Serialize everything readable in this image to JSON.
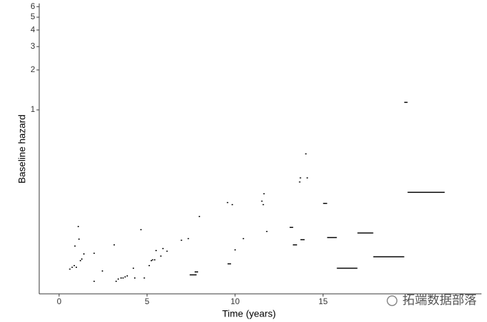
{
  "chart_data": {
    "type": "step-segments",
    "x_label": "Time (years)",
    "y_label": "Baseline hazard",
    "yscale": "log",
    "xlim": [
      -1.13,
      24
    ],
    "xticks": [
      0,
      5,
      10,
      15
    ],
    "ylim": [
      0.041,
      6.35
    ],
    "yticks": [
      1,
      2,
      3,
      4,
      5,
      6
    ],
    "grid": false,
    "color": "#000000",
    "x": [
      0.57,
      0.7,
      0.82,
      0.86,
      0.94,
      1.05,
      1.09,
      1.17,
      1.25,
      1.37,
      1.95,
      1.95,
      2.42,
      3.09,
      3.2,
      3.32,
      3.48,
      3.59,
      3.71,
      3.83,
      4.18,
      4.26,
      4.61,
      4.8,
      5.08,
      5.2,
      5.27,
      5.39,
      5.47,
      5.74,
      5.86,
      6.09,
      6.91,
      7.3,
      7.42,
      7.7,
      7.93,
      9.53,
      9.8,
      9.57,
      9.96,
      10.43,
      11.48,
      11.56,
      11.6,
      11.76,
      13.1,
      13.28,
      13.63,
      13.67,
      13.71,
      13.98,
      14.06,
      15.0,
      15.23,
      15.78,
      16.95,
      17.85,
      19.61,
      19.8
    ],
    "x_end": [
      0.65,
      0.78,
      0.9,
      0.94,
      1.02,
      1.13,
      1.17,
      1.25,
      1.33,
      1.45,
      2.03,
      2.03,
      2.5,
      3.17,
      3.28,
      3.4,
      3.56,
      3.67,
      3.79,
      3.91,
      4.26,
      4.34,
      4.69,
      4.88,
      5.16,
      5.28,
      5.35,
      5.47,
      5.55,
      5.82,
      5.94,
      6.17,
      6.99,
      7.38,
      7.81,
      7.9,
      8.01,
      9.61,
      9.88,
      9.77,
      10.04,
      10.51,
      11.56,
      11.64,
      11.68,
      11.84,
      13.3,
      13.52,
      13.71,
      13.75,
      13.95,
      14.06,
      14.14,
      15.23,
      15.78,
      16.95,
      17.85,
      19.61,
      19.8,
      21.91
    ],
    "values": [
      0.063,
      0.065,
      0.067,
      0.094,
      0.065,
      0.132,
      0.106,
      0.073,
      0.075,
      0.082,
      0.051,
      0.083,
      0.061,
      0.096,
      0.051,
      0.053,
      0.054,
      0.054,
      0.055,
      0.056,
      0.064,
      0.054,
      0.125,
      0.054,
      0.067,
      0.073,
      0.074,
      0.074,
      0.087,
      0.079,
      0.09,
      0.086,
      0.104,
      0.107,
      0.057,
      0.06,
      0.157,
      0.2,
      0.193,
      0.069,
      0.088,
      0.107,
      0.205,
      0.193,
      0.233,
      0.121,
      0.13,
      0.096,
      0.286,
      0.307,
      0.105,
      0.466,
      0.307,
      0.197,
      0.109,
      0.064,
      0.118,
      0.078,
      1.14,
      0.239
    ],
    "watermark": "拓端数据部落"
  }
}
